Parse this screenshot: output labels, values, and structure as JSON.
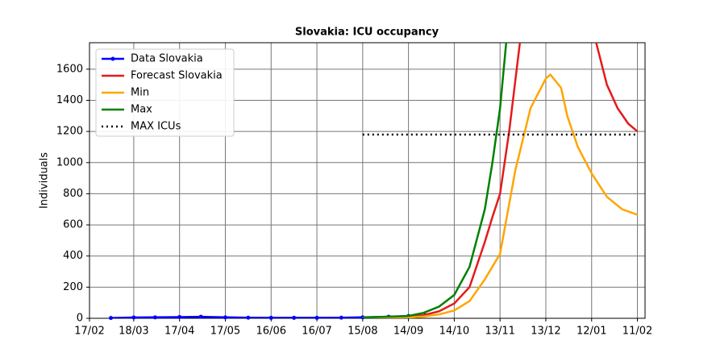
{
  "chart_data": {
    "type": "line",
    "title": "Slovakia: ICU occupancy",
    "ylabel": "Individuals",
    "xlim": [
      "17/02",
      "16/02"
    ],
    "xticks": [
      "17/02",
      "18/03",
      "17/04",
      "17/05",
      "16/06",
      "16/07",
      "15/08",
      "14/09",
      "14/10",
      "13/11",
      "13/12",
      "12/01",
      "11/02"
    ],
    "ylim": [
      0,
      1770
    ],
    "yticks": [
      0,
      200,
      400,
      600,
      800,
      1000,
      1200,
      1400,
      1600
    ],
    "grid": true,
    "legend": "upper left",
    "series": [
      {
        "name": "Data Slovakia",
        "color": "#0000ff",
        "width": 2.5,
        "marker": true,
        "x": [
          "03/03",
          "18/03",
          "01/04",
          "17/04",
          "01/05",
          "17/05",
          "01/06",
          "16/06",
          "01/07",
          "16/07",
          "01/08",
          "15/08",
          "01/09",
          "14/09",
          "25/09"
        ],
        "values": [
          2,
          5,
          6,
          8,
          10,
          6,
          4,
          3,
          3,
          3,
          4,
          6,
          10,
          14,
          20
        ]
      },
      {
        "name": "Forecast Slovakia",
        "color": "#e41a1c",
        "width": 2.5,
        "x": [
          "15/08",
          "14/09",
          "24/09",
          "04/10",
          "14/10",
          "24/10",
          "03/11",
          "08/11",
          "13/11",
          "19/11",
          "26/11",
          "20/12",
          "15/01",
          "22/01",
          "29/01",
          "05/02",
          "11/02"
        ],
        "values": [
          5,
          8,
          20,
          45,
          95,
          200,
          490,
          650,
          800,
          1200,
          1770,
          null,
          1770,
          1500,
          1350,
          1250,
          1200
        ]
      },
      {
        "name": "Min",
        "color": "#ffa500",
        "width": 2.5,
        "x": [
          "15/08",
          "14/09",
          "24/09",
          "04/10",
          "14/10",
          "24/10",
          "03/11",
          "13/11",
          "23/11",
          "03/12",
          "13/12",
          "16/12",
          "23/12",
          "27/12",
          "03/01",
          "12/01",
          "22/01",
          "01/02",
          "11/02"
        ],
        "values": [
          3,
          5,
          12,
          25,
          50,
          110,
          250,
          414,
          950,
          1350,
          1540,
          1565,
          1480,
          1300,
          1100,
          930,
          780,
          700,
          665
        ]
      },
      {
        "name": "Max",
        "color": "#008000",
        "width": 2.5,
        "x": [
          "15/08",
          "14/09",
          "24/09",
          "04/10",
          "14/10",
          "24/10",
          "03/11",
          "08/11",
          "13/11",
          "17/11"
        ],
        "values": [
          5,
          15,
          35,
          75,
          150,
          330,
          700,
          1000,
          1350,
          1770
        ]
      },
      {
        "name": "MAX ICUs",
        "color": "#000000",
        "width": 2.5,
        "dotted": true,
        "x": [
          "15/08",
          "11/02"
        ],
        "values": [
          1180,
          1180
        ]
      }
    ]
  }
}
